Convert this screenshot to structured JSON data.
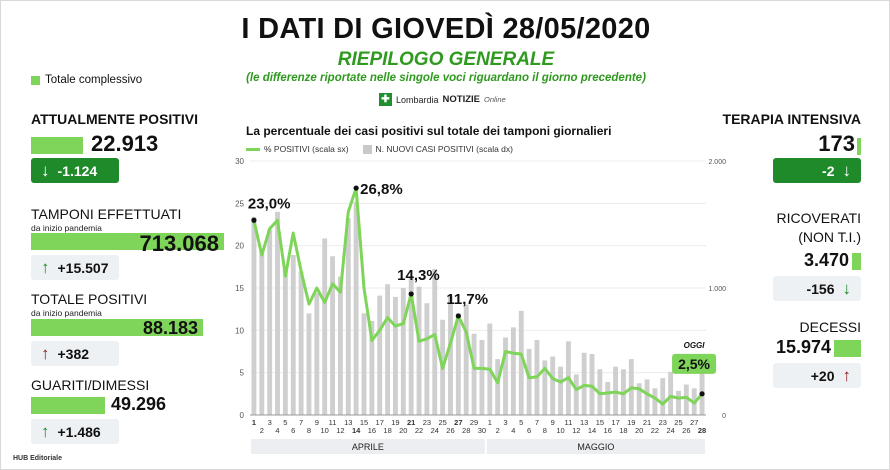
{
  "header": {
    "title": "I DATI DI GIOVEDÌ 28/05/2020",
    "subtitle": "RIEPILOGO GENERALE",
    "note": "(le differenze riportate nelle singole voci riguardano il giorno precedente)",
    "brand_mark": "✚",
    "brand_prefix": "Lombardia",
    "brand_main": "NOTIZIE",
    "brand_suffix": "Online"
  },
  "legend_total": "Totale complessivo",
  "left_stats": {
    "attualmente": {
      "label": "ATTUALMENTE POSITIVI",
      "value": "22.913",
      "delta": "-1.124",
      "bar_fraction": 0.26
    },
    "tamponi": {
      "label": "TAMPONI EFFETTUATI",
      "sublabel": "da inizio pandemia",
      "value": "713.068",
      "delta": "+15.507",
      "bar_fraction": 1.0
    },
    "totale": {
      "label": "TOTALE POSITIVI",
      "sublabel": "da inizio pandemia",
      "value": "88.183",
      "delta": "+382",
      "bar_fraction": 1.0
    },
    "guariti": {
      "label": "GUARITI/DIMESSI",
      "value": "49.296",
      "delta": "+1.486",
      "bar_fraction": 0.56
    }
  },
  "right_stats": {
    "terapia": {
      "label": "TERAPIA INTENSIVA",
      "value": "173",
      "delta": "-2"
    },
    "ricoverati": {
      "label_line1": "RICOVERATI",
      "label_line2": "(NON T.I.)",
      "value": "3.470",
      "delta": "-156"
    },
    "decessi": {
      "label": "DECESSI",
      "value": "15.974",
      "delta": "+20"
    }
  },
  "footer": "HUB Editoriale",
  "chart_data": {
    "type": "line",
    "title": "La percentuale dei casi positivi sul totale dei tamponi giornalieri",
    "legend": [
      "% POSITIVI (scala sx)",
      "N. NUOVI CASI POSITIVI (scala dx)"
    ],
    "x": [
      "1",
      "2",
      "3",
      "4",
      "5",
      "6",
      "7",
      "8",
      "9",
      "10",
      "11",
      "12",
      "13",
      "14",
      "15",
      "16",
      "17",
      "18",
      "19",
      "20",
      "21",
      "22",
      "23",
      "24",
      "25",
      "26",
      "27",
      "28",
      "29",
      "30",
      "1",
      "2",
      "3",
      "4",
      "5",
      "6",
      "7",
      "8",
      "9",
      "10",
      "11",
      "12",
      "13",
      "14",
      "15",
      "16",
      "17",
      "18",
      "19",
      "20",
      "21",
      "22",
      "23",
      "24",
      "25",
      "26",
      "27",
      "28"
    ],
    "x_groups": [
      {
        "label": "APRILE",
        "count": 30
      },
      {
        "label": "MAGGIO",
        "count": 28
      }
    ],
    "y_left_ticks": [
      0,
      5,
      10,
      15,
      20,
      25,
      30
    ],
    "y_left_range": [
      0,
      30
    ],
    "y_right_ticks": [
      "0",
      "1.000",
      "2.000"
    ],
    "y_right_range": [
      0,
      2000
    ],
    "series": [
      {
        "name": "% POSITIVI (scala sx)",
        "axis": "left",
        "color": "#7fd45a",
        "values": [
          23.0,
          18.9,
          22.0,
          23.0,
          16.4,
          21.5,
          17.0,
          13.1,
          15.0,
          13.3,
          15.5,
          14.5,
          24.0,
          26.8,
          15.0,
          8.8,
          10.0,
          11.5,
          10.5,
          10.8,
          14.3,
          8.7,
          9.0,
          9.5,
          5.5,
          8.5,
          11.7,
          9.8,
          5.5,
          5.5,
          5.4,
          3.8,
          7.5,
          7.3,
          7.2,
          4.4,
          4.5,
          5.5,
          4.3,
          3.9,
          4.4,
          3.0,
          3.5,
          3.4,
          2.5,
          2.6,
          2.7,
          2.5,
          3.2,
          3.1,
          2.5,
          2.0,
          1.3,
          2.2,
          2.0,
          2.1,
          1.4,
          2.5
        ]
      },
      {
        "name": "N. NUOVI CASI POSITIVI (scala dx)",
        "axis": "right",
        "color": "#cfcfcf",
        "values": [
          1560,
          1290,
          1460,
          1600,
          1140,
          1260,
          1130,
          800,
          960,
          1390,
          1250,
          1090,
          1550,
          1680,
          800,
          740,
          940,
          1030,
          930,
          1000,
          1080,
          1010,
          880,
          1150,
          750,
          940,
          800,
          870,
          640,
          590,
          720,
          440,
          610,
          690,
          820,
          520,
          590,
          430,
          460,
          380,
          580,
          320,
          490,
          480,
          360,
          260,
          380,
          360,
          440,
          250,
          280,
          210,
          290,
          340,
          190,
          240,
          210,
          380
        ]
      }
    ],
    "annotations": [
      {
        "index": 0,
        "label": "23,0%"
      },
      {
        "index": 13,
        "label": "26,8%"
      },
      {
        "index": 20,
        "label": "14,3%"
      },
      {
        "index": 26,
        "label": "11,7%"
      },
      {
        "index": 57,
        "label": "2,5%",
        "badge": "OGGI"
      }
    ],
    "grid": true
  }
}
